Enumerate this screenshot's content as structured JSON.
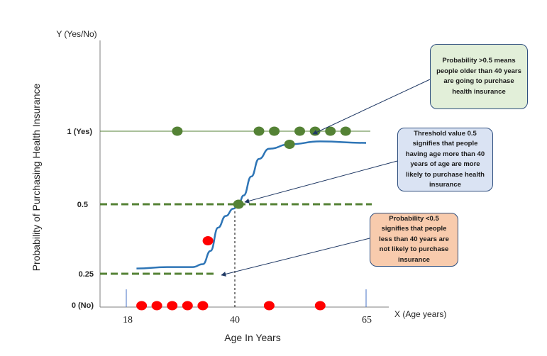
{
  "chart_data": {
    "type": "scatter",
    "title": "",
    "y_axis_label": "Y (Yes/No)",
    "x_axis_label": "X (Age years)",
    "ylabel": "Probability of Purchasing Health Insurance",
    "xlabel": "Age In Years",
    "x_tick_labels": [
      "18",
      "40",
      "65"
    ],
    "y_tick_labels": [
      "1 (Yes)",
      "0.5",
      "0.25",
      "0 (No)"
    ],
    "xlim": [
      18,
      65
    ],
    "ylim": [
      0,
      1
    ],
    "threshold": 0.5,
    "threshold_age": 40,
    "yes_points": [
      {
        "x": 28,
        "y": 1
      },
      {
        "x": 44,
        "y": 1
      },
      {
        "x": 47,
        "y": 1
      },
      {
        "x": 52,
        "y": 1
      },
      {
        "x": 55,
        "y": 1
      },
      {
        "x": 58,
        "y": 1
      },
      {
        "x": 61,
        "y": 1
      }
    ],
    "no_points": [
      {
        "x": 21,
        "y": 0
      },
      {
        "x": 24,
        "y": 0
      },
      {
        "x": 27,
        "y": 0
      },
      {
        "x": 30,
        "y": 0
      },
      {
        "x": 33,
        "y": 0
      },
      {
        "x": 46,
        "y": 0
      },
      {
        "x": 56,
        "y": 0
      }
    ],
    "highlight_points": [
      {
        "x": 40,
        "y": 0.5,
        "color": "green"
      },
      {
        "x": 50,
        "y": 0.91,
        "color": "green"
      },
      {
        "x": 34,
        "y": 0.25,
        "color": "red"
      }
    ],
    "curve": [
      {
        "x": 20,
        "y": 0.06
      },
      {
        "x": 26,
        "y": 0.07
      },
      {
        "x": 31,
        "y": 0.07
      },
      {
        "x": 33,
        "y": 0.09
      },
      {
        "x": 34.5,
        "y": 0.18
      },
      {
        "x": 36,
        "y": 0.34
      },
      {
        "x": 37.5,
        "y": 0.42
      },
      {
        "x": 39,
        "y": 0.47
      },
      {
        "x": 40,
        "y": 0.5
      },
      {
        "x": 41,
        "y": 0.56
      },
      {
        "x": 42.5,
        "y": 0.69
      },
      {
        "x": 44,
        "y": 0.81
      },
      {
        "x": 46,
        "y": 0.88
      },
      {
        "x": 50,
        "y": 0.91
      },
      {
        "x": 56,
        "y": 0.93
      },
      {
        "x": 65,
        "y": 0.92
      }
    ],
    "colors": {
      "yes_point": "#548235",
      "no_point": "#ff0000",
      "curve": "#2e75b6",
      "dashed": "#548235",
      "yes_line": "#548235",
      "arrow": "#1f3864"
    },
    "annotations": [
      {
        "text": "Probability >0.5 means people older than 40 years are going to purchase health insurance"
      },
      {
        "text": "Threshold value 0.5 signifies that  people having age more than 40 years of age are more likely to purchase health insurance"
      },
      {
        "text": "Probability <0.5 signifies that  people less than 40 years are not likely to purchase insurance"
      }
    ]
  }
}
